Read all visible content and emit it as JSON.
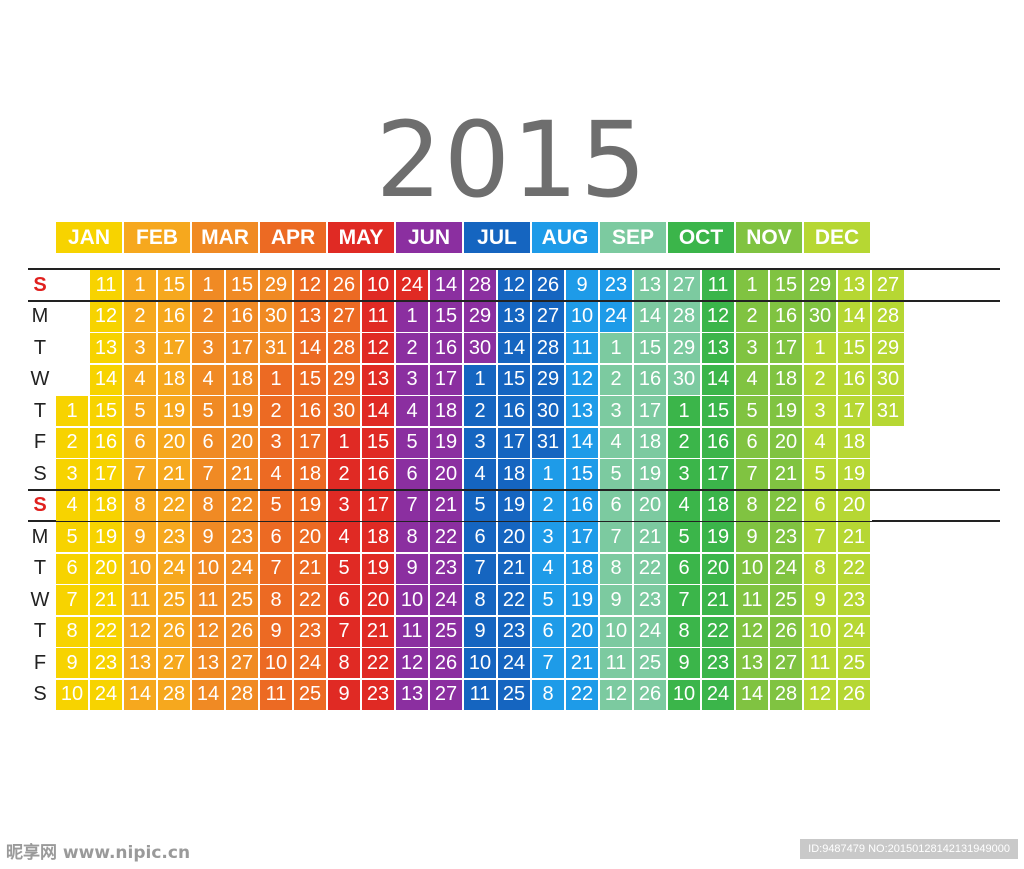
{
  "title": "2015",
  "day_labels": [
    "S",
    "M",
    "T",
    "W",
    "T",
    "F",
    "S",
    "S",
    "M",
    "T",
    "W",
    "T",
    "F",
    "S"
  ],
  "months": [
    {
      "name": "JAN",
      "color": "#f7d300",
      "start": 4,
      "days": 31
    },
    {
      "name": "FEB",
      "color": "#f6a81e",
      "start": 0,
      "days": 28
    },
    {
      "name": "MAR",
      "color": "#f08a24",
      "start": 0,
      "days": 31
    },
    {
      "name": "APR",
      "color": "#ec6a23",
      "start": 3,
      "days": 30
    },
    {
      "name": "MAY",
      "color": "#e02a24",
      "start": 5,
      "days": 31
    },
    {
      "name": "JUN",
      "color": "#8b2fa0",
      "start": 1,
      "days": 30
    },
    {
      "name": "JUL",
      "color": "#1565c0",
      "start": 3,
      "days": 31
    },
    {
      "name": "AUG",
      "color": "#1e9be8",
      "start": 6,
      "days": 31
    },
    {
      "name": "SEP",
      "color": "#7ccaa0",
      "start": 2,
      "days": 30
    },
    {
      "name": "OCT",
      "color": "#3bb54a",
      "start": 4,
      "days": 31
    },
    {
      "name": "NOV",
      "color": "#80c341",
      "start": 0,
      "days": 30
    },
    {
      "name": "DEC",
      "color": "#b6d733",
      "start": 2,
      "days": 31
    }
  ],
  "watermark": {
    "left": "昵享网 www.nipic.cn",
    "right": "ID:9487479 NO:20150128142131949000"
  }
}
